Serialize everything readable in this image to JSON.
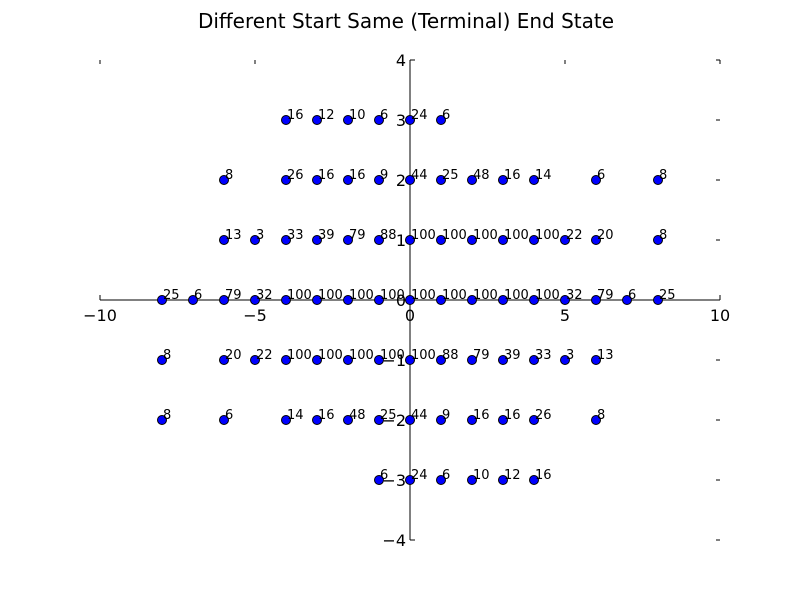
{
  "chart_data": {
    "type": "scatter",
    "title": "Different Start Same (Terminal) End State",
    "xlabel": "",
    "ylabel": "",
    "xlim": [
      -10,
      10
    ],
    "ylim": [
      -4,
      4
    ],
    "x_ticks": [
      -10,
      -5,
      0,
      5,
      10
    ],
    "x_tick_labels": [
      "−10",
      "−5",
      "0",
      "5",
      "10"
    ],
    "y_ticks": [
      -4,
      -3,
      -2,
      -1,
      0,
      1,
      2,
      3,
      4
    ],
    "y_tick_labels": [
      "−4",
      "−3",
      "−2",
      "−1",
      "0",
      "1",
      "2",
      "3",
      "4"
    ],
    "grid": false,
    "legend": "none",
    "spines": "centered",
    "marker_color": "#0000ff",
    "marker_edge_color": "#000000",
    "points": [
      {
        "x": -4,
        "y": 3,
        "label": "16"
      },
      {
        "x": -3,
        "y": 3,
        "label": "12"
      },
      {
        "x": -2,
        "y": 3,
        "label": "10"
      },
      {
        "x": -1,
        "y": 3,
        "label": "6"
      },
      {
        "x": 0,
        "y": 3,
        "label": "24"
      },
      {
        "x": 1,
        "y": 3,
        "label": "6"
      },
      {
        "x": -6,
        "y": 2,
        "label": "8"
      },
      {
        "x": -4,
        "y": 2,
        "label": "26"
      },
      {
        "x": -3,
        "y": 2,
        "label": "16"
      },
      {
        "x": -2,
        "y": 2,
        "label": "16"
      },
      {
        "x": -1,
        "y": 2,
        "label": "9"
      },
      {
        "x": 0,
        "y": 2,
        "label": "44"
      },
      {
        "x": 1,
        "y": 2,
        "label": "25"
      },
      {
        "x": 2,
        "y": 2,
        "label": "48"
      },
      {
        "x": 3,
        "y": 2,
        "label": "16"
      },
      {
        "x": 4,
        "y": 2,
        "label": "14"
      },
      {
        "x": 6,
        "y": 2,
        "label": "6"
      },
      {
        "x": 8,
        "y": 2,
        "label": "8"
      },
      {
        "x": -6,
        "y": 1,
        "label": "13"
      },
      {
        "x": -5,
        "y": 1,
        "label": "3"
      },
      {
        "x": -4,
        "y": 1,
        "label": "33"
      },
      {
        "x": -3,
        "y": 1,
        "label": "39"
      },
      {
        "x": -2,
        "y": 1,
        "label": "79"
      },
      {
        "x": -1,
        "y": 1,
        "label": "88"
      },
      {
        "x": 0,
        "y": 1,
        "label": "100"
      },
      {
        "x": 1,
        "y": 1,
        "label": "100"
      },
      {
        "x": 2,
        "y": 1,
        "label": "100"
      },
      {
        "x": 3,
        "y": 1,
        "label": "100"
      },
      {
        "x": 4,
        "y": 1,
        "label": "100"
      },
      {
        "x": 5,
        "y": 1,
        "label": "22"
      },
      {
        "x": 6,
        "y": 1,
        "label": "20"
      },
      {
        "x": 8,
        "y": 1,
        "label": "8"
      },
      {
        "x": -8,
        "y": 0,
        "label": "25"
      },
      {
        "x": -7,
        "y": 0,
        "label": "6"
      },
      {
        "x": -6,
        "y": 0,
        "label": "79"
      },
      {
        "x": -5,
        "y": 0,
        "label": "32"
      },
      {
        "x": -4,
        "y": 0,
        "label": "100"
      },
      {
        "x": -3,
        "y": 0,
        "label": "100"
      },
      {
        "x": -2,
        "y": 0,
        "label": "100"
      },
      {
        "x": -1,
        "y": 0,
        "label": "100"
      },
      {
        "x": 0,
        "y": 0,
        "label": "100"
      },
      {
        "x": 1,
        "y": 0,
        "label": "100"
      },
      {
        "x": 2,
        "y": 0,
        "label": "100"
      },
      {
        "x": 3,
        "y": 0,
        "label": "100"
      },
      {
        "x": 4,
        "y": 0,
        "label": "100"
      },
      {
        "x": 5,
        "y": 0,
        "label": "32"
      },
      {
        "x": 6,
        "y": 0,
        "label": "79"
      },
      {
        "x": 7,
        "y": 0,
        "label": "6"
      },
      {
        "x": 8,
        "y": 0,
        "label": "25"
      },
      {
        "x": -8,
        "y": -1,
        "label": "8"
      },
      {
        "x": -6,
        "y": -1,
        "label": "20"
      },
      {
        "x": -5,
        "y": -1,
        "label": "22"
      },
      {
        "x": -4,
        "y": -1,
        "label": "100"
      },
      {
        "x": -3,
        "y": -1,
        "label": "100"
      },
      {
        "x": -2,
        "y": -1,
        "label": "100"
      },
      {
        "x": -1,
        "y": -1,
        "label": "100"
      },
      {
        "x": 0,
        "y": -1,
        "label": "100"
      },
      {
        "x": 1,
        "y": -1,
        "label": "88"
      },
      {
        "x": 2,
        "y": -1,
        "label": "79"
      },
      {
        "x": 3,
        "y": -1,
        "label": "39"
      },
      {
        "x": 4,
        "y": -1,
        "label": "33"
      },
      {
        "x": 5,
        "y": -1,
        "label": "3"
      },
      {
        "x": 6,
        "y": -1,
        "label": "13"
      },
      {
        "x": -8,
        "y": -2,
        "label": "8"
      },
      {
        "x": -6,
        "y": -2,
        "label": "6"
      },
      {
        "x": -4,
        "y": -2,
        "label": "14"
      },
      {
        "x": -3,
        "y": -2,
        "label": "16"
      },
      {
        "x": -2,
        "y": -2,
        "label": "48"
      },
      {
        "x": -1,
        "y": -2,
        "label": "25"
      },
      {
        "x": 0,
        "y": -2,
        "label": "44"
      },
      {
        "x": 1,
        "y": -2,
        "label": "9"
      },
      {
        "x": 2,
        "y": -2,
        "label": "16"
      },
      {
        "x": 3,
        "y": -2,
        "label": "16"
      },
      {
        "x": 4,
        "y": -2,
        "label": "26"
      },
      {
        "x": 6,
        "y": -2,
        "label": "8"
      },
      {
        "x": -1,
        "y": -3,
        "label": "6"
      },
      {
        "x": 0,
        "y": -3,
        "label": "24"
      },
      {
        "x": 1,
        "y": -3,
        "label": "6"
      },
      {
        "x": 2,
        "y": -3,
        "label": "10"
      },
      {
        "x": 3,
        "y": -3,
        "label": "12"
      },
      {
        "x": 4,
        "y": -3,
        "label": "16"
      }
    ]
  }
}
